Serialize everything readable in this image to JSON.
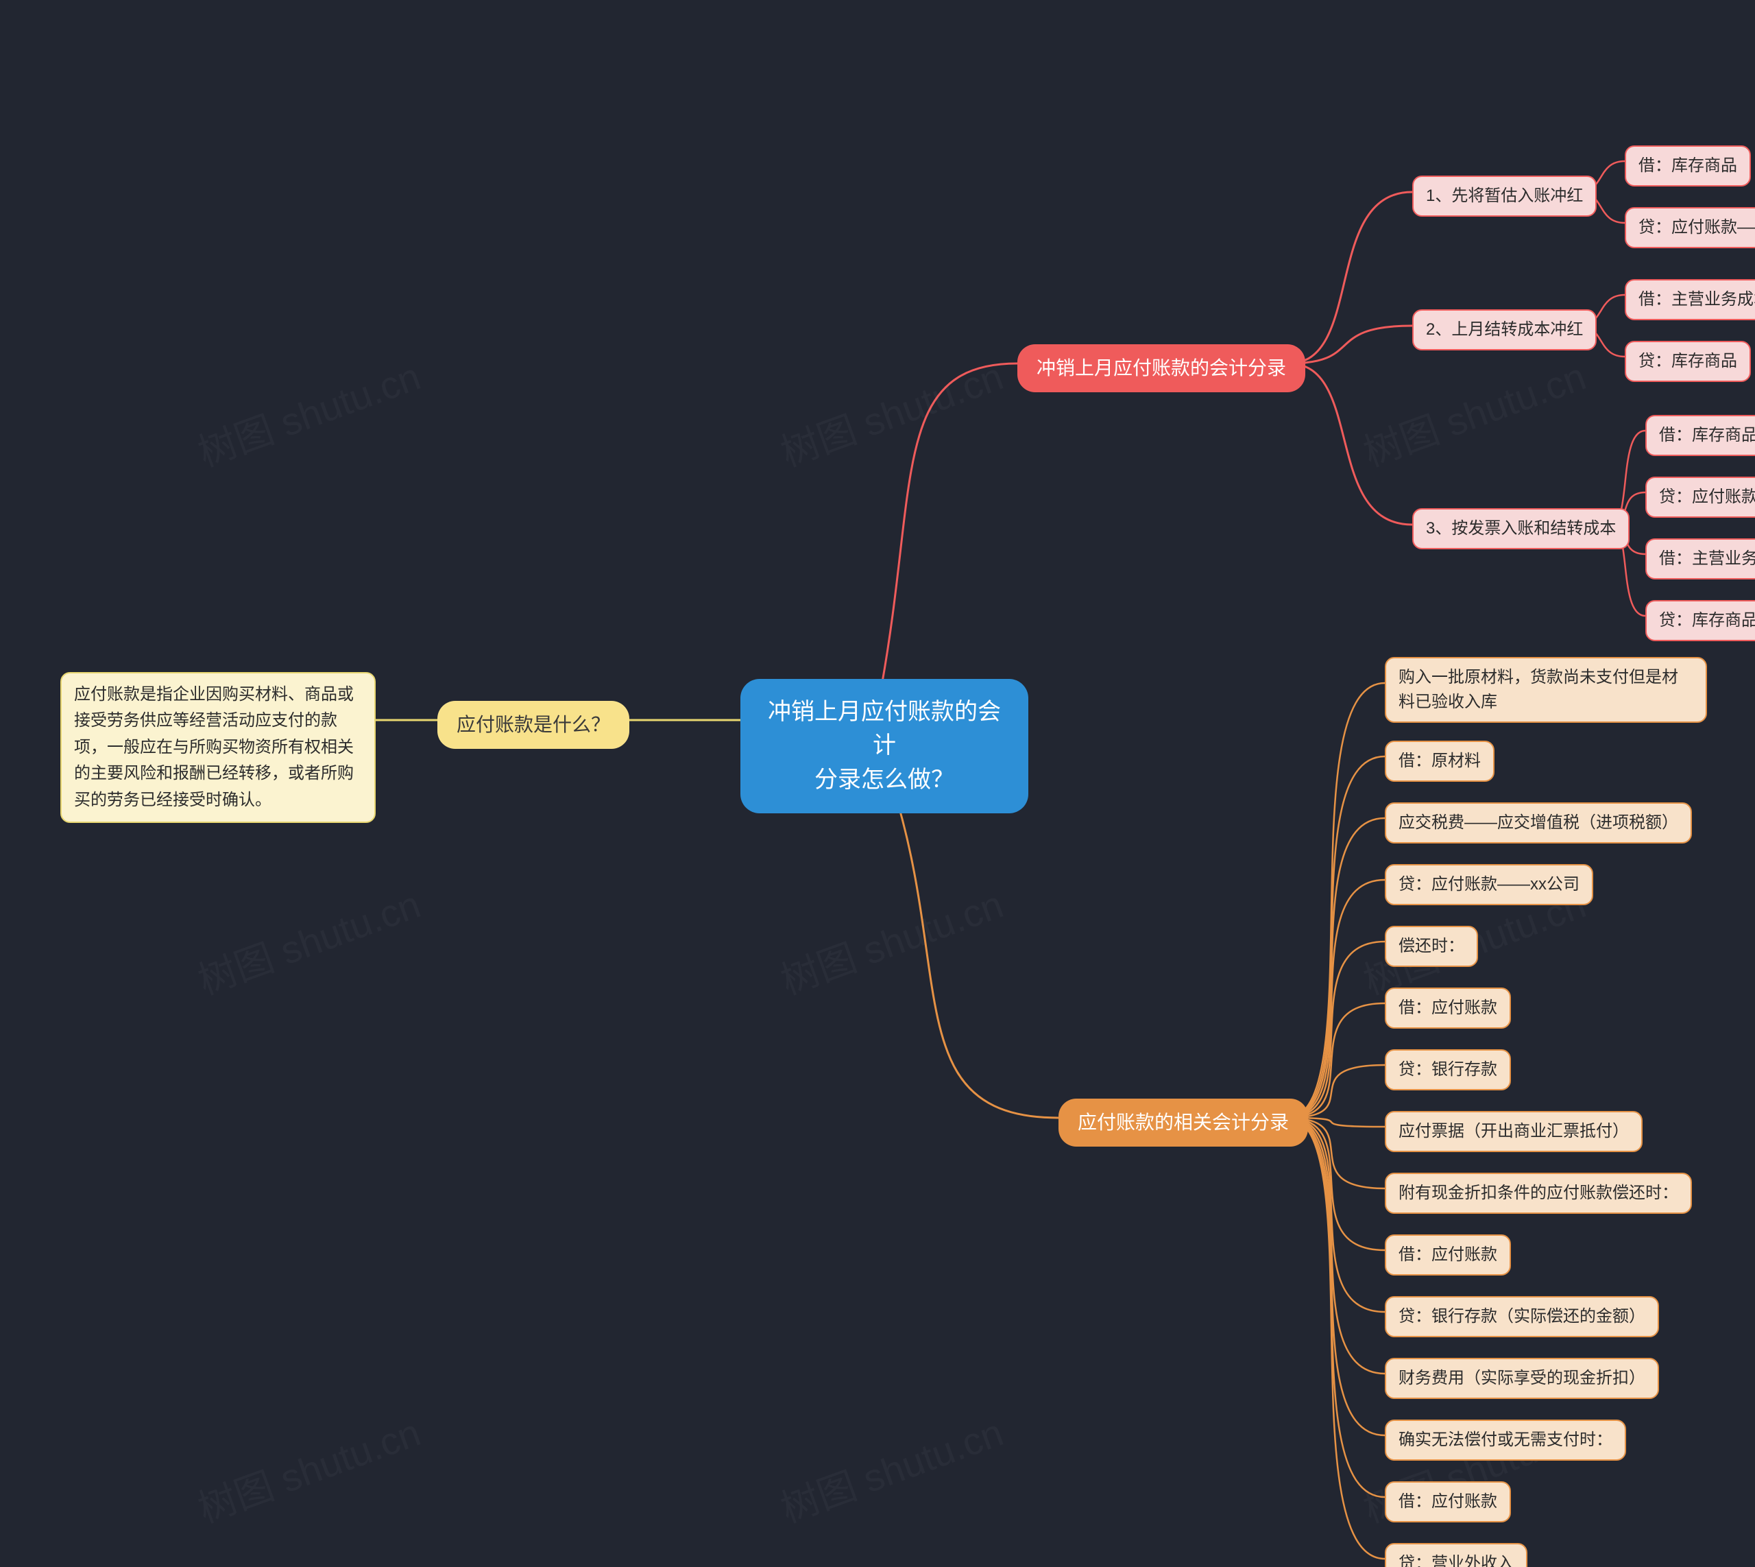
{
  "background_color": "#222631",
  "watermark_text": "树图 shutu.cn",
  "root": {
    "label": "冲销上月应付账款的会计\n分录怎么做？",
    "bg": "#2d8fd6",
    "fg": "#ffffff"
  },
  "left_branch": {
    "label": "应付账款是什么？",
    "bg": "#f8e28b",
    "fg": "#3a3a3a",
    "leaf": "应付账款是指企业因购买材料、商品或接受劳务供应等经营活动应支付的款项，一般应在与所购买物资所有权相关的主要风险和报酬已经转移，或者所购买的劳务已经接受时确认。"
  },
  "top_branch": {
    "label": "冲销上月应付账款的会计分录",
    "bg": "#ef5b5b",
    "fg": "#ffffff",
    "groups": [
      {
        "label": "1、先将暂估入账冲红",
        "items": [
          "借：库存商品",
          "贷：应付账款——暂估款"
        ]
      },
      {
        "label": "2、上月结转成本冲红",
        "items": [
          "借：主营业务成本",
          "贷：库存商品"
        ]
      },
      {
        "label": "3、按发票入账和结转成本",
        "items": [
          "借：库存商品",
          "贷：应付账款——商品款",
          "借：主营业务成本",
          "贷：库存商品"
        ]
      }
    ]
  },
  "bottom_branch": {
    "label": "应付账款的相关会计分录",
    "bg": "#e69245",
    "fg": "#ffffff",
    "items": [
      "购入一批原材料，货款尚未支付但是材料已验收入库",
      "借：原材料",
      "应交税费——应交增值税（进项税额）",
      "贷：应付账款——xx公司",
      "偿还时：",
      "借：应付账款",
      "贷：银行存款",
      "应付票据（开出商业汇票抵付）",
      "附有现金折扣条件的应付账款偿还时：",
      "借：应付账款",
      "贷：银行存款（实际偿还的金额）",
      "财务费用（实际享受的现金折扣）",
      "确实无法偿付或无需支付时：",
      "借：应付账款",
      "贷：营业外收入"
    ]
  },
  "colors": {
    "curve_red": "#ef5b5b",
    "curve_yellow": "#e8d670",
    "curve_orange": "#e69245"
  }
}
